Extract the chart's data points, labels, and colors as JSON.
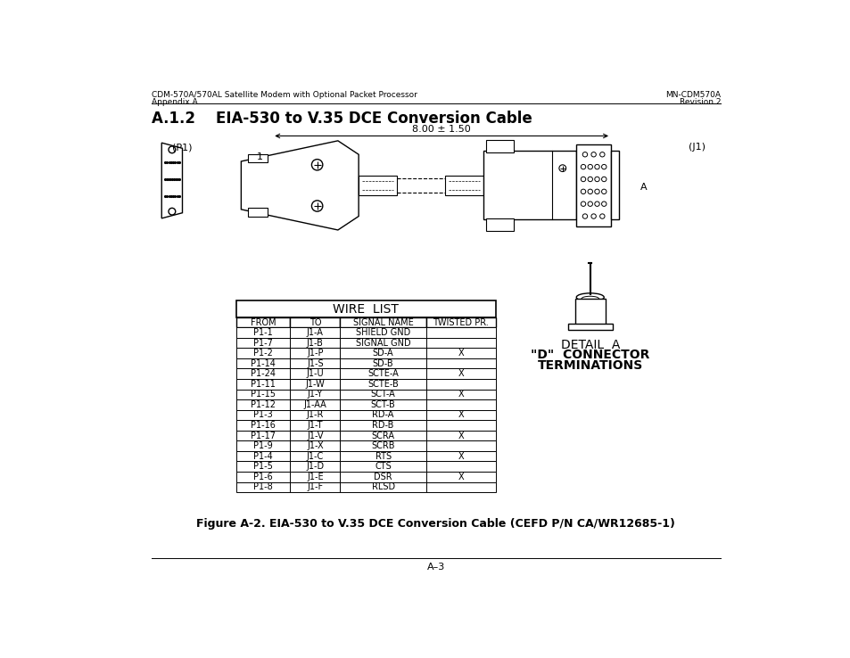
{
  "page_header_left_line1": "CDM-570A/570AL Satellite Modem with Optional Packet Processor",
  "page_header_left_line2": "Appendix A",
  "page_header_right_line1": "MN-CDM570A",
  "page_header_right_line2": "Revision 2",
  "section_title": "A.1.2    EIA-530 to V.35 DCE Conversion Cable",
  "figure_caption": "Figure A-2. EIA-530 to V.35 DCE Conversion Cable (CEFD P/N CA/WR12685-1)",
  "page_footer": "A–3",
  "wire_list_title": "WIRE  LIST",
  "table_headers": [
    "FROM",
    "TO",
    "SIGNAL NAME",
    "TWISTED PR."
  ],
  "table_rows": [
    [
      "P1-1",
      "J1-A",
      "SHIELD GND",
      ""
    ],
    [
      "P1-7",
      "J1-B",
      "SIGNAL GND",
      ""
    ],
    [
      "P1-2",
      "J1-P",
      "SD-A",
      "X"
    ],
    [
      "P1-14",
      "J1-S",
      "SD-B",
      ""
    ],
    [
      "P1-24",
      "J1-U",
      "SCTE-A",
      "X"
    ],
    [
      "P1-11",
      "J1-W",
      "SCTE-B",
      ""
    ],
    [
      "P1-15",
      "J1-Y",
      "SCT-A",
      "X"
    ],
    [
      "P1-12",
      "J1-AA",
      "SCT-B",
      ""
    ],
    [
      "P1-3",
      "J1-R",
      "RD-A",
      "X"
    ],
    [
      "P1-16",
      "J1-T",
      "RD-B",
      ""
    ],
    [
      "P1-17",
      "J1-V",
      "SCRA",
      "X"
    ],
    [
      "P1-9",
      "J1-X",
      "SCRB",
      ""
    ],
    [
      "P1-4",
      "J1-C",
      "RTS",
      "X"
    ],
    [
      "P1-5",
      "J1-D",
      "CTS",
      ""
    ],
    [
      "P1-6",
      "J1-E",
      "DSR",
      "X"
    ],
    [
      "P1-8",
      "J1-F",
      "RLSD",
      ""
    ]
  ],
  "detail_label": "DETAIL  A",
  "connector_label_line1": "\"D\"  CONNECTOR",
  "connector_label_line2": "TERMINATIONS",
  "dim_text": "8.00 ± 1.50"
}
